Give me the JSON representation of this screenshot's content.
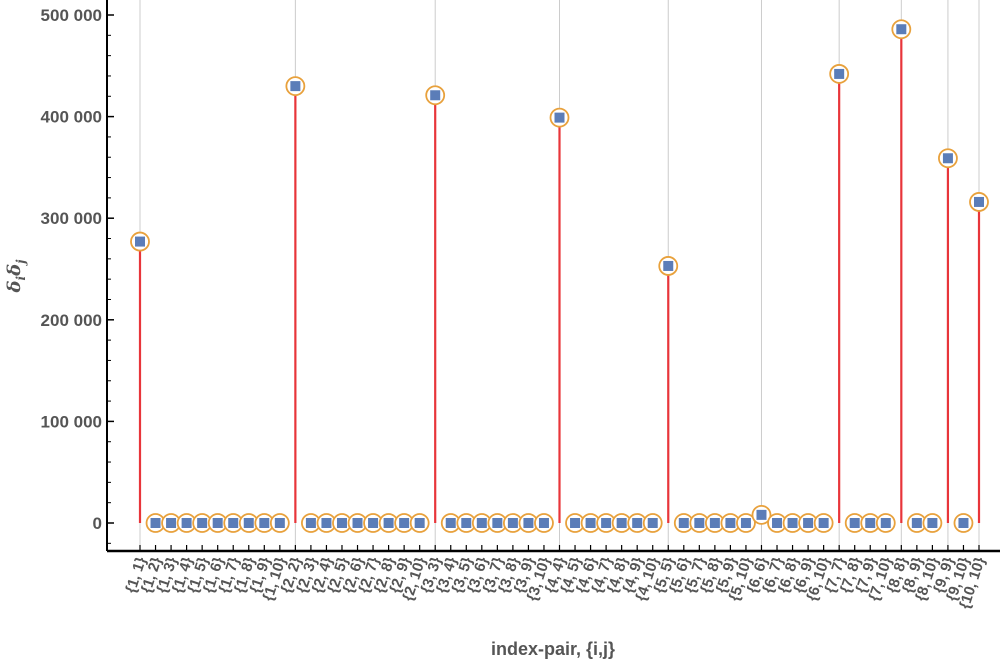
{
  "chart_data": {
    "type": "scatter",
    "xlabel": "index-pair, {i,j}",
    "ylabel": "δ",
    "ylabel_sub_i": "i",
    "ylabel_mid": "δ",
    "ylabel_sub_j": "j",
    "ylim": [
      -30000,
      520000
    ],
    "yticks": [
      0,
      100000,
      200000,
      300000,
      400000,
      500000
    ],
    "ytick_labels": [
      "0",
      "100 000",
      "200 000",
      "300 000",
      "400 000",
      "500 000"
    ],
    "grid": "vertical lines at diagonal pairs {i, i}",
    "colors": {
      "stem": "#e8353a",
      "marker_fill": "#5b7db8",
      "ring": "#e8a13c",
      "axis": "#000000",
      "grid": "#cccccc",
      "text": "#555555"
    },
    "points": [
      {
        "label": "{1, 1}",
        "value": 277000
      },
      {
        "label": "{1, 2}",
        "value": 0
      },
      {
        "label": "{1, 3}",
        "value": 0
      },
      {
        "label": "{1, 4}",
        "value": 0
      },
      {
        "label": "{1, 5}",
        "value": 0
      },
      {
        "label": "{1, 6}",
        "value": 0
      },
      {
        "label": "{1, 7}",
        "value": 0
      },
      {
        "label": "{1, 8}",
        "value": 0
      },
      {
        "label": "{1, 9}",
        "value": 0
      },
      {
        "label": "{1, 10}",
        "value": 0
      },
      {
        "label": "{2, 2}",
        "value": 430000
      },
      {
        "label": "{2, 3}",
        "value": 0
      },
      {
        "label": "{2, 4}",
        "value": 0
      },
      {
        "label": "{2, 5}",
        "value": 0
      },
      {
        "label": "{2, 6}",
        "value": 0
      },
      {
        "label": "{2, 7}",
        "value": 0
      },
      {
        "label": "{2, 8}",
        "value": 0
      },
      {
        "label": "{2, 9}",
        "value": 0
      },
      {
        "label": "{2, 10}",
        "value": 0
      },
      {
        "label": "{3, 3}",
        "value": 421000
      },
      {
        "label": "{3, 4}",
        "value": 0
      },
      {
        "label": "{3, 5}",
        "value": 0
      },
      {
        "label": "{3, 6}",
        "value": 0
      },
      {
        "label": "{3, 7}",
        "value": 0
      },
      {
        "label": "{3, 8}",
        "value": 0
      },
      {
        "label": "{3, 9}",
        "value": 0
      },
      {
        "label": "{3, 10}",
        "value": 0
      },
      {
        "label": "{4, 4}",
        "value": 399000
      },
      {
        "label": "{4, 5}",
        "value": 0
      },
      {
        "label": "{4, 6}",
        "value": 0
      },
      {
        "label": "{4, 7}",
        "value": 0
      },
      {
        "label": "{4, 8}",
        "value": 0
      },
      {
        "label": "{4, 9}",
        "value": 0
      },
      {
        "label": "{4, 10}",
        "value": 0
      },
      {
        "label": "{5, 5}",
        "value": 253000
      },
      {
        "label": "{5, 6}",
        "value": 0
      },
      {
        "label": "{5, 7}",
        "value": 0
      },
      {
        "label": "{5, 8}",
        "value": 0
      },
      {
        "label": "{5, 9}",
        "value": 0
      },
      {
        "label": "{5, 10}",
        "value": 0
      },
      {
        "label": "{6, 6}",
        "value": 8000
      },
      {
        "label": "{6, 7}",
        "value": 0
      },
      {
        "label": "{6, 8}",
        "value": 0
      },
      {
        "label": "{6, 9}",
        "value": 0
      },
      {
        "label": "{6, 10}",
        "value": 0
      },
      {
        "label": "{7, 7}",
        "value": 442000
      },
      {
        "label": "{7, 8}",
        "value": 0
      },
      {
        "label": "{7, 9}",
        "value": 0
      },
      {
        "label": "{7, 10}",
        "value": 0
      },
      {
        "label": "{8, 8}",
        "value": 486000
      },
      {
        "label": "{8, 9}",
        "value": 0
      },
      {
        "label": "{8, 10}",
        "value": 0
      },
      {
        "label": "{9, 9}",
        "value": 359000
      },
      {
        "label": "{9, 10}",
        "value": 0
      },
      {
        "label": "{10, 10}",
        "value": 316000
      }
    ]
  }
}
